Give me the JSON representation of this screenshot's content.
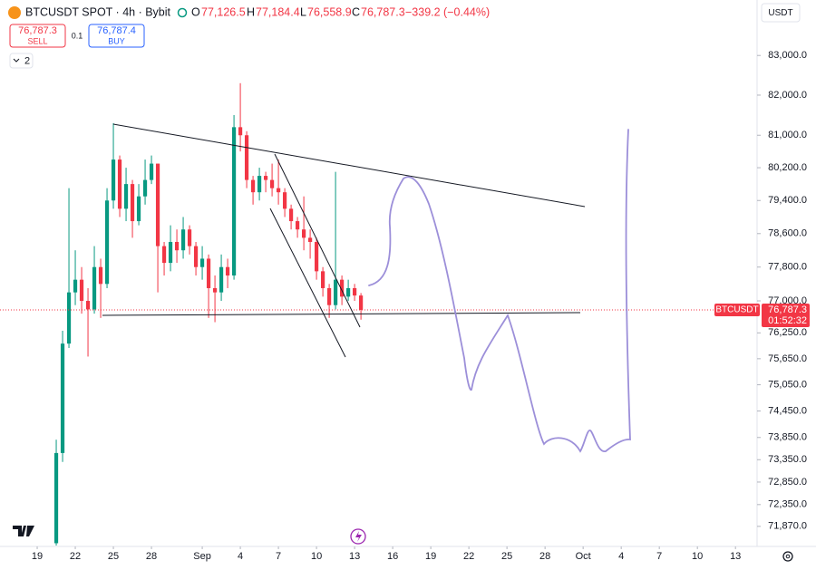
{
  "header": {
    "symbol": "BTCUSDT SPOT · 4h · Bybit",
    "o_label": "O",
    "o": "77,126.5",
    "h_label": "H",
    "h": "77,184.4",
    "l_label": "L",
    "l": "76,558.9",
    "c_label": "C",
    "c": "76,787.3",
    "change": "−339.2 (−0.44%)",
    "sell_price": "76,787.3",
    "sell": "SELL",
    "spread": "0.1",
    "buy_price": "76,787.4",
    "buy": "BUY",
    "indicators_count": "2",
    "currency": "USDT"
  },
  "chart_data": {
    "type": "candlestick",
    "log_scale": true,
    "up_color": "#089981",
    "down_color": "#f23645",
    "xlim": [
      16.07,
      75.7
    ],
    "ylim": [
      71430,
      84420
    ],
    "xticks": [
      {
        "value": 19,
        "label": "19"
      },
      {
        "value": 22,
        "label": "22"
      },
      {
        "value": 25,
        "label": "25"
      },
      {
        "value": 28,
        "label": "28"
      },
      {
        "value": 32,
        "label": "Sep"
      },
      {
        "value": 35,
        "label": "4"
      },
      {
        "value": 38,
        "label": "7"
      },
      {
        "value": 41,
        "label": "10"
      },
      {
        "value": 44,
        "label": "13"
      },
      {
        "value": 47,
        "label": "16"
      },
      {
        "value": 50,
        "label": "19"
      },
      {
        "value": 53,
        "label": "22"
      },
      {
        "value": 56,
        "label": "25"
      },
      {
        "value": 59,
        "label": "28"
      },
      {
        "value": 62,
        "label": "Oct"
      },
      {
        "value": 65,
        "label": "4"
      },
      {
        "value": 68,
        "label": "7"
      },
      {
        "value": 71,
        "label": "10"
      },
      {
        "value": 74,
        "label": "13"
      }
    ],
    "yticks": [
      {
        "value": 83000,
        "label": "83,000.0"
      },
      {
        "value": 82000,
        "label": "82,000.0"
      },
      {
        "value": 81000,
        "label": "81,000.0"
      },
      {
        "value": 80200,
        "label": "80,200.0"
      },
      {
        "value": 79400,
        "label": "79,400.0"
      },
      {
        "value": 78600,
        "label": "78,600.0"
      },
      {
        "value": 77800,
        "label": "77,800.0"
      },
      {
        "value": 77000,
        "label": "77,000.0"
      },
      {
        "value": 76250,
        "label": "76,250.0"
      },
      {
        "value": 75650,
        "label": "75,650.0"
      },
      {
        "value": 75050,
        "label": "75,050.0"
      },
      {
        "value": 74450,
        "label": "74,450.0"
      },
      {
        "value": 73850,
        "label": "73,850.0"
      },
      {
        "value": 73350,
        "label": "73,350.0"
      },
      {
        "value": 72850,
        "label": "72,850.0"
      },
      {
        "value": 72350,
        "label": "72,350.0"
      },
      {
        "value": 71870,
        "label": "71,870.0"
      }
    ],
    "x": [
      20.5,
      21,
      21.5,
      22,
      22.5,
      23,
      23.5,
      24,
      24.5,
      25,
      25.5,
      26,
      26.5,
      27,
      27.5,
      28,
      28.5,
      29,
      29.5,
      30,
      30.5,
      31,
      31.5,
      32,
      32.5,
      33,
      33.5,
      34,
      34.5,
      35,
      35.5,
      36,
      36.5,
      37,
      37.5,
      38,
      38.5,
      39,
      39.5,
      40,
      40.5,
      41,
      41.5,
      42,
      42.5,
      43,
      43.5,
      44,
      44.5
    ],
    "open": [
      71500,
      73500,
      76000,
      77200,
      77500,
      77000,
      76800,
      77800,
      77400,
      79400,
      80400,
      79200,
      79800,
      78900,
      79500,
      79900,
      80300,
      78300,
      77900,
      78400,
      78200,
      78700,
      78300,
      77800,
      78000,
      77300,
      77200,
      77800,
      77600,
      81200,
      81000,
      79900,
      79600,
      80000,
      79900,
      79700,
      79600,
      79200,
      78900,
      78700,
      78500,
      78400,
      77700,
      77300,
      76900,
      77500,
      77100,
      77300,
      77126.5
    ],
    "high": [
      73800,
      76300,
      79700,
      78200,
      77800,
      77300,
      78300,
      78000,
      79700,
      81300,
      80500,
      80200,
      79900,
      79800,
      80400,
      80500,
      80300,
      78400,
      78800,
      78700,
      79000,
      78800,
      78400,
      78300,
      78100,
      77600,
      78100,
      78000,
      81500,
      82300,
      81100,
      80000,
      80200,
      80100,
      80300,
      80400,
      79700,
      79300,
      79000,
      79500,
      78700,
      78500,
      77800,
      77400,
      80100,
      77600,
      77500,
      77400,
      77184.4
    ],
    "low": [
      71450,
      73300,
      75900,
      76900,
      76700,
      75700,
      76700,
      76600,
      77300,
      79200,
      79000,
      78900,
      78500,
      78800,
      79300,
      79800,
      77200,
      77600,
      77700,
      77900,
      78000,
      78100,
      77600,
      77500,
      76600,
      76500,
      77000,
      77300,
      77500,
      80600,
      79700,
      79300,
      79400,
      79600,
      79500,
      79300,
      79000,
      78700,
      78500,
      78200,
      78000,
      77500,
      77100,
      76600,
      76800,
      76900,
      77000,
      77000,
      76558.9
    ],
    "close": [
      73500,
      76000,
      77200,
      77500,
      77000,
      76800,
      77800,
      77400,
      79400,
      80400,
      79200,
      79800,
      78900,
      79500,
      79900,
      80300,
      78300,
      77900,
      78400,
      78200,
      78700,
      78300,
      77800,
      78000,
      77300,
      77200,
      77800,
      77600,
      81200,
      81000,
      79900,
      79600,
      80000,
      79900,
      79700,
      79600,
      79200,
      78900,
      78700,
      78500,
      78400,
      77700,
      77300,
      76900,
      77500,
      77100,
      77300,
      77126.5,
      76787.3
    ],
    "last_price": {
      "symbol": "BTCUSDT",
      "price": "76,787.3",
      "countdown": "01:52:32"
    }
  }
}
